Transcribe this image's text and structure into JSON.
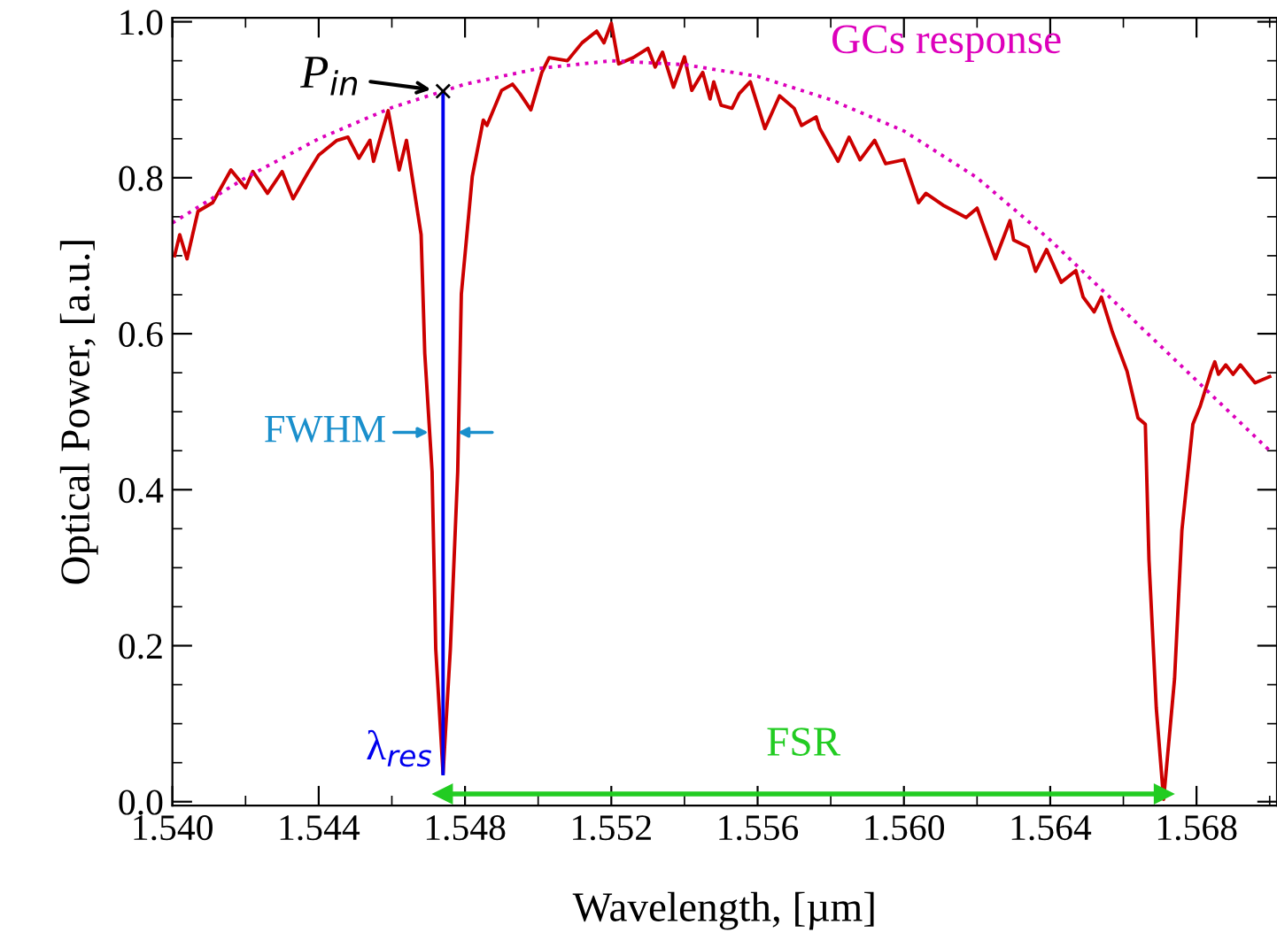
{
  "chart_data": {
    "type": "line",
    "xlabel": "Wavelength, [µm]",
    "ylabel": "Optical Power, [a.u.]",
    "xlim": [
      1.54,
      1.5702
    ],
    "ylim": [
      -0.005,
      1.005
    ],
    "xticks": [
      {
        "value": 1.54,
        "label": "1.540"
      },
      {
        "value": 1.542,
        "label": null
      },
      {
        "value": 1.544,
        "label": "1.544"
      },
      {
        "value": 1.546,
        "label": null
      },
      {
        "value": 1.548,
        "label": "1.548"
      },
      {
        "value": 1.55,
        "label": null
      },
      {
        "value": 1.552,
        "label": "1.552"
      },
      {
        "value": 1.554,
        "label": null
      },
      {
        "value": 1.556,
        "label": "1.556"
      },
      {
        "value": 1.558,
        "label": null
      },
      {
        "value": 1.56,
        "label": "1.560"
      },
      {
        "value": 1.562,
        "label": null
      },
      {
        "value": 1.564,
        "label": "1.564"
      },
      {
        "value": 1.566,
        "label": null
      },
      {
        "value": 1.568,
        "label": "1.568"
      },
      {
        "value": 1.57,
        "label": null
      }
    ],
    "yticks": [
      {
        "value": 0,
        "label": "0.0"
      },
      {
        "value": 0.05,
        "label": null
      },
      {
        "value": 0.1,
        "label": null
      },
      {
        "value": 0.15,
        "label": null
      },
      {
        "value": 0.2,
        "label": "0.2"
      },
      {
        "value": 0.25,
        "label": null
      },
      {
        "value": 0.3,
        "label": null
      },
      {
        "value": 0.35,
        "label": null
      },
      {
        "value": 0.4,
        "label": "0.4"
      },
      {
        "value": 0.45,
        "label": null
      },
      {
        "value": 0.5,
        "label": null
      },
      {
        "value": 0.55,
        "label": null
      },
      {
        "value": 0.6,
        "label": "0.6"
      },
      {
        "value": 0.65,
        "label": null
      },
      {
        "value": 0.7,
        "label": null
      },
      {
        "value": 0.75,
        "label": null
      },
      {
        "value": 0.8,
        "label": "0.8"
      },
      {
        "value": 0.85,
        "label": null
      },
      {
        "value": 0.9,
        "label": null
      },
      {
        "value": 0.95,
        "label": null
      },
      {
        "value": 1.0,
        "label": "1.0"
      }
    ],
    "grid": false,
    "legend": false,
    "series": [
      {
        "color": "#cc0000",
        "line_style": "solid",
        "x": [
          1.54006,
          1.5402,
          1.5404,
          1.5407,
          1.5411,
          1.5416,
          1.542,
          1.5422,
          1.5426,
          1.543,
          1.5433,
          1.5437,
          1.544,
          1.5445,
          1.5448,
          1.5451,
          1.5454,
          1.5455,
          1.5459,
          1.5462,
          1.5464,
          1.5468,
          1.5469,
          1.5471,
          1.5472,
          1.5474,
          1.5476,
          1.5478,
          1.5479,
          1.5482,
          1.5485,
          1.5486,
          1.549,
          1.5493,
          1.5495,
          1.5498,
          1.5501,
          1.5503,
          1.5508,
          1.5512,
          1.5516,
          1.5518,
          1.552,
          1.5522,
          1.5526,
          1.553,
          1.5532,
          1.5534,
          1.5537,
          1.554,
          1.5542,
          1.5545,
          1.5547,
          1.5548,
          1.555,
          1.5553,
          1.5555,
          1.5558,
          1.5562,
          1.5566,
          1.557,
          1.5572,
          1.5576,
          1.5577,
          1.5582,
          1.5585,
          1.5588,
          1.5592,
          1.5595,
          1.56,
          1.5604,
          1.5606,
          1.5611,
          1.5617,
          1.562,
          1.5625,
          1.5629,
          1.563,
          1.5634,
          1.5636,
          1.5639,
          1.5643,
          1.5647,
          1.5649,
          1.5652,
          1.5654,
          1.5657,
          1.5661,
          1.5664,
          1.5666,
          1.5667,
          1.5669,
          1.5671,
          1.5674,
          1.5676,
          1.5679,
          1.5681,
          1.5684,
          1.5685,
          1.5686,
          1.5688,
          1.569,
          1.5692,
          1.5696,
          1.57
        ],
        "values": [
          0.7,
          0.727,
          0.696,
          0.757,
          0.768,
          0.81,
          0.787,
          0.808,
          0.78,
          0.808,
          0.773,
          0.806,
          0.829,
          0.848,
          0.852,
          0.825,
          0.848,
          0.821,
          0.886,
          0.81,
          0.848,
          0.727,
          0.575,
          0.423,
          0.196,
          0.036,
          0.196,
          0.423,
          0.651,
          0.802,
          0.874,
          0.867,
          0.912,
          0.92,
          0.908,
          0.887,
          0.935,
          0.954,
          0.95,
          0.973,
          0.988,
          0.973,
          0.998,
          0.946,
          0.954,
          0.966,
          0.942,
          0.961,
          0.916,
          0.955,
          0.912,
          0.935,
          0.901,
          0.923,
          0.893,
          0.889,
          0.908,
          0.923,
          0.863,
          0.905,
          0.889,
          0.867,
          0.878,
          0.863,
          0.821,
          0.852,
          0.823,
          0.848,
          0.818,
          0.823,
          0.768,
          0.78,
          0.764,
          0.749,
          0.761,
          0.696,
          0.745,
          0.72,
          0.711,
          0.68,
          0.708,
          0.666,
          0.681,
          0.647,
          0.628,
          0.647,
          0.602,
          0.552,
          0.492,
          0.484,
          0.31,
          0.12,
          0.003,
          0.158,
          0.348,
          0.484,
          0.507,
          0.552,
          0.564,
          0.548,
          0.56,
          0.548,
          0.56,
          0.537,
          0.545
        ]
      },
      {
        "name": "GCs response",
        "color": "#dd00bb",
        "line_style": "dotted",
        "x": [
          1.54,
          1.542,
          1.544,
          1.546,
          1.548,
          1.55,
          1.552,
          1.554,
          1.556,
          1.558,
          1.56,
          1.562,
          1.564,
          1.566,
          1.568,
          1.57
        ],
        "values": [
          0.742,
          0.8,
          0.85,
          0.89,
          0.92,
          0.94,
          0.95,
          0.945,
          0.93,
          0.9,
          0.86,
          0.8,
          0.72,
          0.63,
          0.54,
          0.45
        ]
      },
      {
        "type": "line",
        "color": "#0000ee",
        "line_style": "solid",
        "x": [
          1.5474,
          1.5474
        ],
        "values": [
          0.036,
          0.911
        ]
      },
      {
        "type": "scatter",
        "color": "#000000",
        "marker": "cross",
        "x": [
          1.5474
        ],
        "values": [
          0.911
        ]
      },
      {
        "type": "line",
        "color": "#22cc22",
        "line_style": "solid",
        "marker": "triangle",
        "x": [
          1.5474,
          1.5671
        ],
        "values": [
          0.01,
          0.01
        ]
      }
    ],
    "annotations": [
      "P$_{in}$",
      "λ$_{res}$",
      "FWHM",
      "FSR"
    ]
  }
}
